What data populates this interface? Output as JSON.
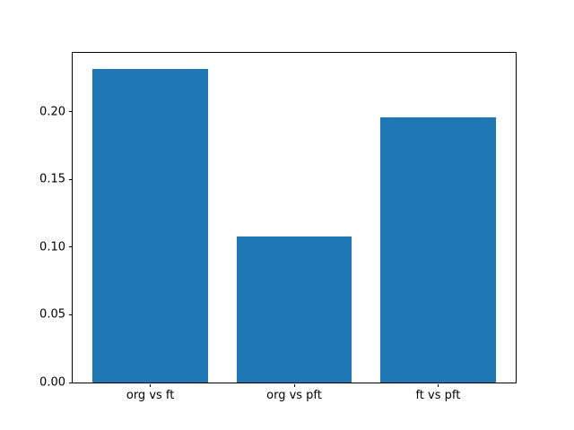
{
  "chart_data": {
    "type": "bar",
    "title": "",
    "xlabel": "",
    "ylabel": "",
    "categories": [
      "org vs ft",
      "org vs pft",
      "ft vs pft"
    ],
    "values": [
      0.232,
      0.108,
      0.196
    ],
    "yticks": [
      0.0,
      0.05,
      0.1,
      0.15,
      0.2
    ],
    "ytick_labels": [
      "0.00",
      "0.05",
      "0.10",
      "0.15",
      "0.20"
    ],
    "ylim": [
      0,
      0.2437
    ],
    "xlim": [
      -0.54,
      2.54
    ],
    "bar_width": 0.8,
    "bar_color": "#1f77b4",
    "axes_background": "#ffffff",
    "spine_color": "#000000",
    "grid": false,
    "legend": null
  }
}
